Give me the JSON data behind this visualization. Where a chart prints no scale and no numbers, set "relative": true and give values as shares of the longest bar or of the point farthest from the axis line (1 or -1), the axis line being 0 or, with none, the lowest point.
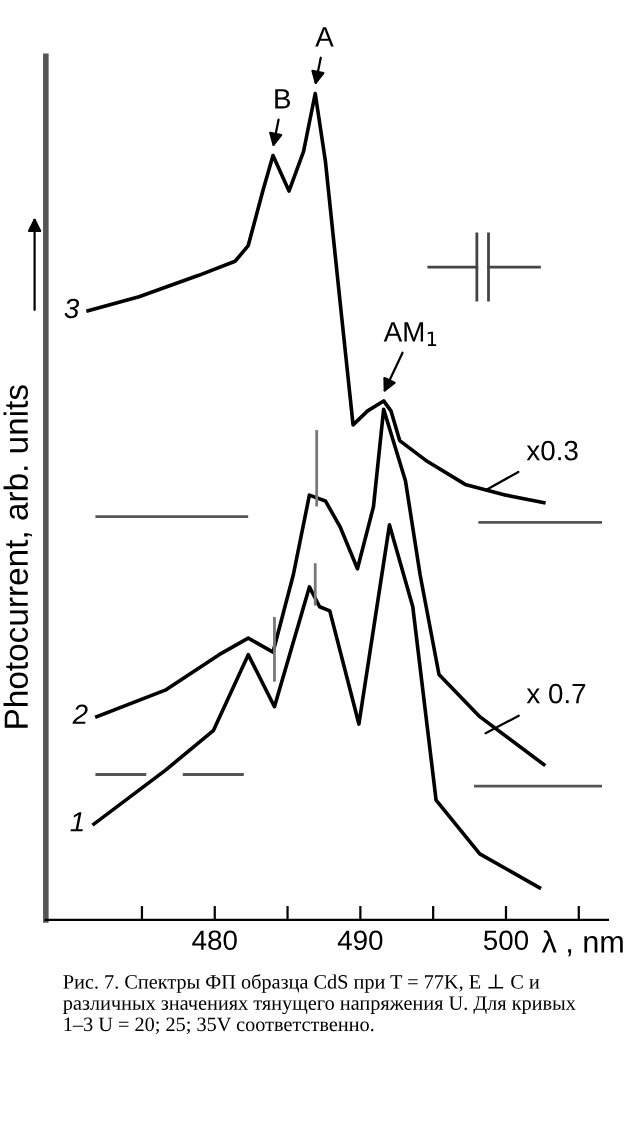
{
  "chart_data": {
    "type": "line",
    "relative": true,
    "xlabel": "λ , nm",
    "ylabel": "Photocurrent, arb. units",
    "xlim": [
      468.4,
      507.0
    ],
    "xticks": [
      {
        "value": 475,
        "label": null
      },
      480,
      {
        "value": 485,
        "label": null
      },
      490,
      {
        "value": 495,
        "label": null
      },
      500,
      {
        "value": 505,
        "label": null
      }
    ],
    "grid": false,
    "legend": false,
    "marker": "none",
    "line_style": "solid",
    "tick_labels": "x",
    "series": [
      {
        "name": "3",
        "color": "#000000",
        "x": [
          471.3,
          474.8,
          478.9,
          481.4,
          482.3,
          483.3,
          484.0,
          485.1,
          486.1,
          486.9,
          487.6,
          488.6,
          489.5,
          490.5,
          491.6,
          492.1,
          492.7,
          494.5,
          497.2,
          500.0,
          502.6
        ],
        "values": [
          0.737,
          0.754,
          0.78,
          0.797,
          0.816,
          0.882,
          0.925,
          0.882,
          0.93,
          1.0,
          0.918,
          0.749,
          0.599,
          0.616,
          0.628,
          0.616,
          0.58,
          0.556,
          0.527,
          0.514,
          0.505
        ]
      },
      {
        "name": "2",
        "color": "#000000",
        "x": [
          471.9,
          476.6,
          480.3,
          482.3,
          484.0,
          485.4,
          486.5,
          487.6,
          488.6,
          489.8,
          490.9,
          491.6,
          493.1,
          494.1,
          495.4,
          498.2,
          502.6
        ],
        "values": [
          0.246,
          0.278,
          0.321,
          0.341,
          0.324,
          0.418,
          0.514,
          0.507,
          0.476,
          0.425,
          0.5,
          0.618,
          0.531,
          0.418,
          0.297,
          0.246,
          0.188
        ]
      },
      {
        "name": "1",
        "color": "#000000",
        "x": [
          471.7,
          476.6,
          479.9,
          482.3,
          484.1,
          486.5,
          487.2,
          487.9,
          489.9,
          492.0,
          493.6,
          495.2,
          498.2,
          502.3
        ],
        "values": [
          0.116,
          0.181,
          0.229,
          0.321,
          0.258,
          0.403,
          0.379,
          0.374,
          0.237,
          0.478,
          0.379,
          0.145,
          0.08,
          0.039
        ]
      },
      {
        "color": "#555555",
        "x": [
          471.9,
          482.2
        ],
        "values": [
          0.488,
          0.488
        ]
      },
      {
        "color": "#555555",
        "x": [
          498.2,
          506.5
        ],
        "values": [
          0.481,
          0.481
        ]
      },
      {
        "color": "#555555",
        "x": [
          471.9,
          475.2
        ],
        "values": [
          0.176,
          0.176
        ]
      },
      {
        "color": "#555555",
        "x": [
          477.9,
          481.9
        ],
        "values": [
          0.176,
          0.176
        ]
      },
      {
        "color": "#555555",
        "x": [
          497.9,
          506.5
        ],
        "values": [
          0.162,
          0.162
        ]
      },
      {
        "color": "#777777",
        "x": [
          487.0,
          487.0
        ],
        "values": [
          0.591,
          0.502
        ]
      },
      {
        "color": "#777777",
        "x": [
          484.1,
          484.1
        ],
        "values": [
          0.365,
          0.29
        ]
      },
      {
        "color": "#777777",
        "x": [
          486.9,
          486.9
        ],
        "values": [
          0.382,
          0.43
        ]
      }
    ],
    "annotations": [
      {
        "text": "A",
        "x": 486.9,
        "y": 1.0
      },
      {
        "text": "B",
        "x": 484.0,
        "y": 0.925
      },
      {
        "text": "AM$_{1}$",
        "x": 491.6,
        "y": 0.628
      },
      {
        "text": "x0.3",
        "x": 498.6,
        "y": 0.52
      },
      {
        "text": "x 0.7",
        "x": 498.6,
        "y": 0.226
      },
      "Рис. 7. Спектры ФП образца CdS при T = 77K, E ⊥ C и\nразличных значениях тянущего напряжения U. Для кривых\n1–3 U = 20; 25; 35V соответственно."
    ]
  }
}
